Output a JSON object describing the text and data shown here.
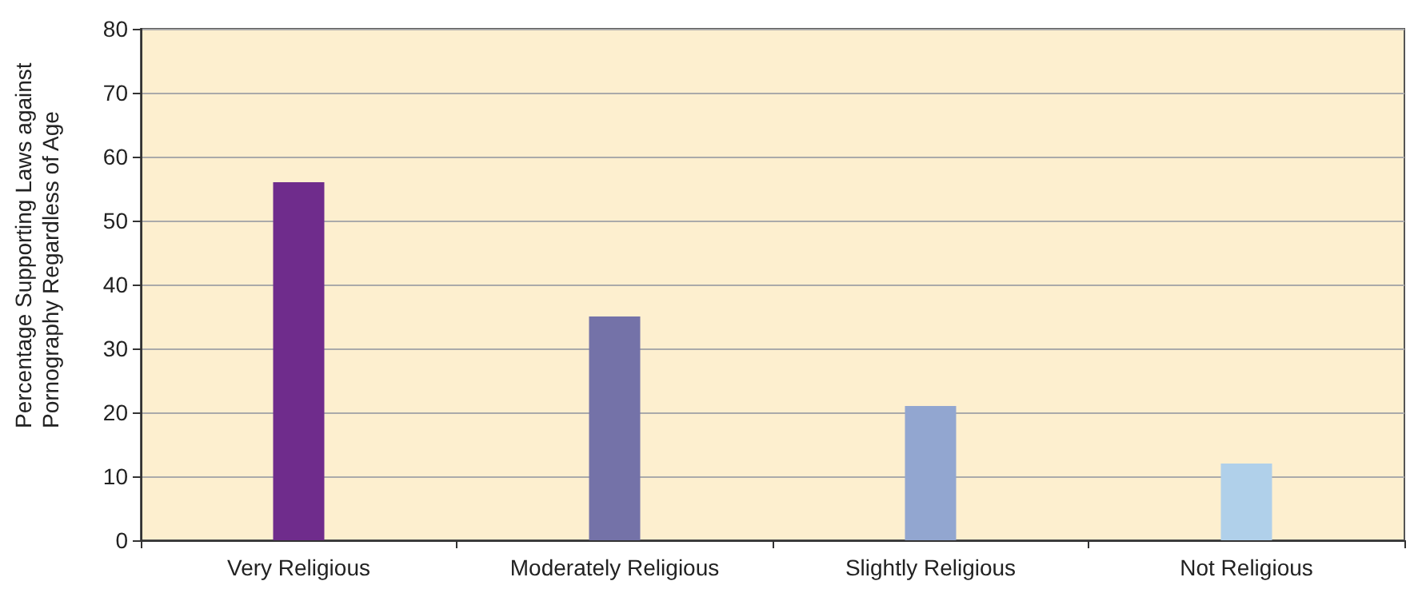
{
  "chart_data": {
    "type": "bar",
    "categories": [
      "Very Religious",
      "Moderately Religious",
      "Slightly Religious",
      "Not Religious"
    ],
    "values": [
      56,
      35,
      21,
      12
    ],
    "colors": [
      "#6f2c8c",
      "#7472a8",
      "#92a6d0",
      "#b0d0ea"
    ],
    "ylabel": "Percentage Supporting Laws against Pornography Regardless of Age",
    "ylim": [
      0,
      80
    ],
    "yticks": [
      0,
      10,
      20,
      30,
      40,
      50,
      60,
      70,
      80
    ],
    "grid": "y"
  }
}
